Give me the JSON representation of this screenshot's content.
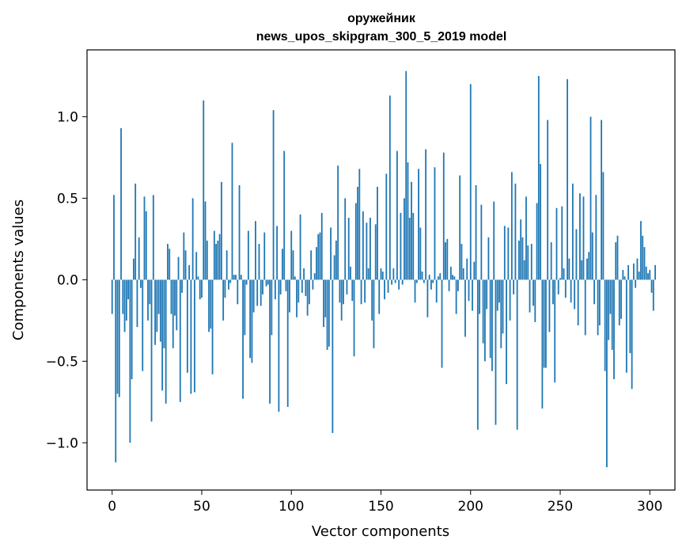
{
  "chart_data": {
    "type": "bar",
    "title": "оружейник",
    "subtitle": "news_upos_skipgram_300_5_2019 model",
    "xlabel": "Vector components",
    "ylabel": "Components values",
    "xlim": [
      -14,
      314
    ],
    "ylim": [
      -1.29,
      1.41
    ],
    "xticks": [
      0,
      50,
      100,
      150,
      200,
      250,
      300
    ],
    "xtick_labels": [
      "0",
      "50",
      "100",
      "150",
      "200",
      "250",
      "300"
    ],
    "yticks": [
      -1.0,
      -0.5,
      0.0,
      0.5,
      1.0
    ],
    "ytick_labels": [
      "−1.0",
      "−0.5",
      "0.0",
      "0.5",
      "1.0"
    ],
    "grid": false,
    "bar_color": "#1f77b4",
    "values": [
      -0.21,
      0.52,
      -1.12,
      -0.7,
      -0.72,
      0.93,
      -0.21,
      -0.32,
      -0.25,
      -0.12,
      -1.0,
      -0.61,
      0.13,
      0.59,
      -0.29,
      0.26,
      -0.05,
      -0.56,
      0.51,
      0.42,
      -0.25,
      -0.15,
      -0.87,
      0.52,
      -0.4,
      -0.32,
      -0.21,
      -0.38,
      -0.68,
      -0.42,
      -0.76,
      0.22,
      0.19,
      -0.21,
      -0.42,
      -0.22,
      -0.31,
      0.14,
      -0.75,
      -0.08,
      0.29,
      0.18,
      -0.57,
      0.09,
      -0.7,
      0.5,
      -0.69,
      0.17,
      0.02,
      -0.12,
      -0.11,
      1.1,
      0.48,
      0.24,
      -0.32,
      -0.3,
      -0.58,
      0.3,
      0.22,
      0.24,
      0.28,
      0.6,
      -0.25,
      -0.11,
      0.18,
      -0.06,
      -0.02,
      0.84,
      0.03,
      0.03,
      -0.15,
      0.58,
      0.03,
      -0.73,
      -0.34,
      -0.03,
      0.3,
      -0.48,
      -0.51,
      -0.2,
      0.36,
      -0.16,
      0.22,
      -0.16,
      -0.09,
      0.29,
      -0.04,
      -0.03,
      -0.76,
      -0.34,
      1.04,
      -0.12,
      0.33,
      -0.81,
      -0.09,
      0.19,
      0.79,
      -0.07,
      -0.78,
      -0.2,
      0.3,
      0.18,
      0.02,
      -0.23,
      -0.14,
      0.4,
      -0.08,
      0.07,
      -0.1,
      -0.22,
      -0.15,
      0.18,
      -0.06,
      0.04,
      0.2,
      0.28,
      0.29,
      0.41,
      -0.29,
      -0.23,
      -0.43,
      -0.41,
      0.32,
      -0.94,
      0.15,
      0.24,
      0.7,
      -0.14,
      -0.25,
      -0.15,
      0.5,
      -0.09,
      0.38,
      0.08,
      -0.13,
      -0.47,
      0.47,
      0.57,
      0.68,
      -0.15,
      0.42,
      -0.14,
      0.35,
      0.07,
      0.38,
      -0.25,
      -0.42,
      0.34,
      0.57,
      -0.21,
      0.07,
      0.05,
      -0.12,
      0.65,
      -0.08,
      1.13,
      -0.03,
      0.07,
      -0.02,
      0.79,
      -0.06,
      0.41,
      -0.03,
      0.5,
      1.28,
      0.72,
      0.38,
      0.6,
      0.41,
      -0.14,
      -0.02,
      0.68,
      0.32,
      0.05,
      -0.02,
      0.8,
      -0.23,
      0.03,
      -0.06,
      -0.02,
      0.69,
      -0.14,
      0.02,
      0.04,
      -0.54,
      0.78,
      0.23,
      0.25,
      -0.07,
      0.08,
      0.03,
      0.02,
      -0.21,
      -0.07,
      0.64,
      0.22,
      0.07,
      -0.35,
      0.13,
      -0.13,
      1.2,
      -0.19,
      0.11,
      0.58,
      -0.92,
      -0.21,
      0.46,
      -0.39,
      -0.5,
      -0.18,
      0.26,
      -0.48,
      -0.56,
      0.48,
      -0.89,
      -0.19,
      -0.14,
      -0.42,
      -0.33,
      0.33,
      -0.64,
      0.32,
      -0.25,
      0.66,
      -0.09,
      0.59,
      -0.92,
      0.24,
      0.37,
      0.26,
      0.12,
      0.51,
      0.21,
      -0.2,
      0.22,
      -0.16,
      -0.26,
      0.47,
      1.25,
      0.71,
      -0.79,
      -0.54,
      -0.54,
      0.98,
      -0.32,
      0.23,
      -0.15,
      -0.63,
      0.44,
      -0.09,
      0.01,
      0.45,
      0.07,
      -0.11,
      1.23,
      0.13,
      -0.14,
      0.59,
      -0.18,
      0.31,
      -0.28,
      0.53,
      0.12,
      0.51,
      -0.34,
      0.13,
      0.17,
      1.0,
      0.29,
      -0.15,
      0.52,
      -0.34,
      -0.28,
      0.98,
      0.66,
      -0.56,
      -1.15,
      -0.37,
      -0.21,
      -0.43,
      -0.61,
      0.23,
      0.27,
      -0.28,
      -0.24,
      0.06,
      0.02,
      -0.57,
      0.09,
      -0.45,
      -0.67,
      0.1,
      -0.05,
      0.13,
      0.05,
      0.36,
      0.27,
      0.2,
      0.08,
      0.04,
      0.06,
      -0.08,
      -0.19,
      0.09
    ]
  }
}
